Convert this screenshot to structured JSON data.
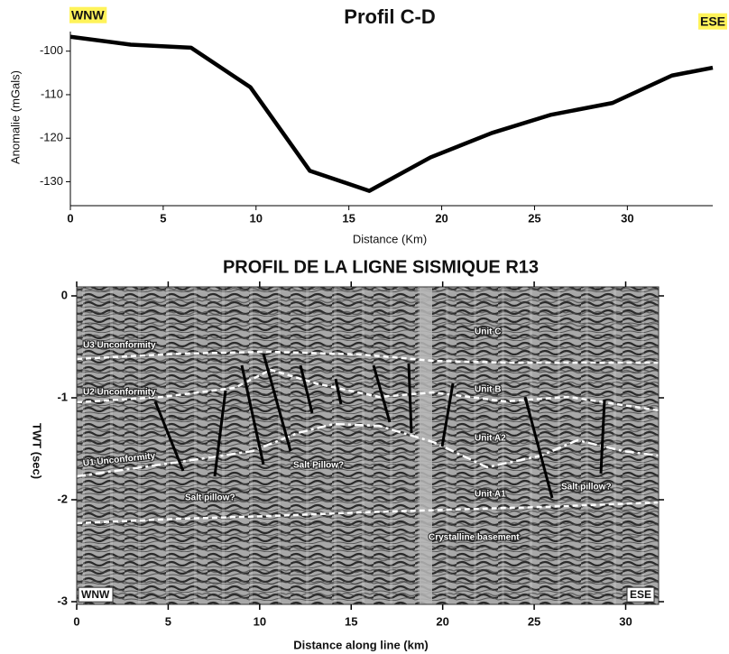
{
  "chart_data": [
    {
      "type": "line",
      "title": "Profil C-D",
      "left_label": "WNW",
      "right_label": "ESE",
      "xlabel": "Distance (Km)",
      "ylabel": "Anomalie (mGals)",
      "color": "#000000",
      "x": [
        0,
        3.25,
        6.5,
        9.7,
        12.9,
        16.1,
        19.4,
        22.7,
        25.9,
        29.2,
        32.4,
        34.6
      ],
      "values": [
        -96.7,
        -98.5,
        -99.2,
        -108.3,
        -127.5,
        -132.1,
        -124.4,
        -118.8,
        -114.6,
        -111.9,
        -105.6,
        -103.8
      ],
      "xlim": [
        0,
        34.6
      ],
      "ylim": [
        -135.5,
        -95.5
      ],
      "xticks": [
        0,
        5,
        10,
        15,
        20,
        25,
        30
      ],
      "yticks": [
        -100,
        -110,
        -120,
        -130
      ]
    },
    {
      "type": "image",
      "title": "PROFIL DE LA LIGNE SISMIQUE R13",
      "xlabel": "Distance along line (km)",
      "ylabel": "TWT (sec)",
      "xlim": [
        0,
        31.8
      ],
      "ylim": [
        -3,
        0
      ],
      "xticks": [
        0,
        5,
        10,
        15,
        20,
        25,
        30
      ],
      "yticks": [
        0,
        -1,
        -2,
        -3
      ],
      "annotations": [
        "U3 Unconformity",
        "U2 Unconformity",
        "U1 Unconformity",
        "Unit C",
        "Unit B",
        "Unit A2",
        "Unit A1",
        "Salt pillow?",
        "Salt Pillow?",
        "Salt pillow?",
        "Crystalline basement",
        "WNW",
        "ESE"
      ]
    }
  ]
}
